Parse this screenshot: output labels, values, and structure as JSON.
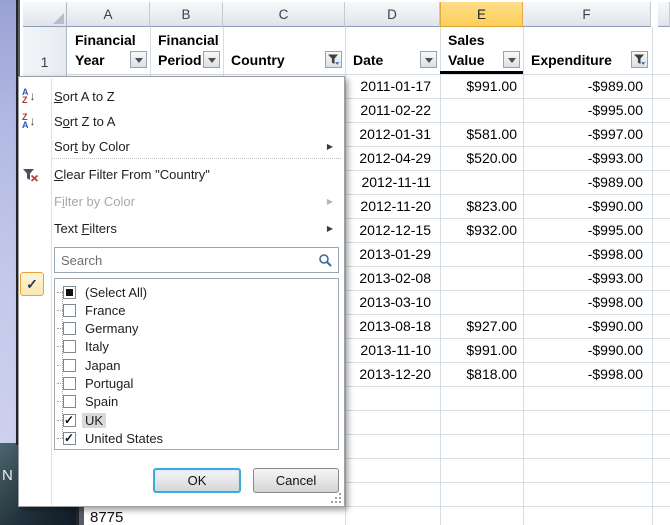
{
  "desktop": {
    "wallpaper_letter": "N"
  },
  "sheet": {
    "column_letters": [
      "A",
      "B",
      "C",
      "D",
      "E",
      "F"
    ],
    "selected_column": "E",
    "row_number": "1",
    "header_cells": [
      {
        "lines": [
          "Financial",
          "Year"
        ],
        "control": "dropdown"
      },
      {
        "lines": [
          "Financial",
          "Period"
        ],
        "control": "dropdown"
      },
      {
        "lines": [
          "Country"
        ],
        "control": "filter"
      },
      {
        "lines": [
          "Date"
        ],
        "control": "dropdown"
      },
      {
        "lines": [
          "Sales",
          "Value"
        ],
        "control": "dropdown"
      },
      {
        "lines": [
          "Expenditure"
        ],
        "control": "filter"
      }
    ],
    "rows": [
      {
        "date": "2011-01-17",
        "sales": "$991.00",
        "expenditure": "-$989.00"
      },
      {
        "date": "2011-02-22",
        "sales": "",
        "expenditure": "-$995.00"
      },
      {
        "date": "2012-01-31",
        "sales": "$581.00",
        "expenditure": "-$997.00"
      },
      {
        "date": "2012-04-29",
        "sales": "$520.00",
        "expenditure": "-$993.00"
      },
      {
        "date": "2012-11-11",
        "sales": "",
        "expenditure": "-$989.00"
      },
      {
        "date": "2012-11-20",
        "sales": "$823.00",
        "expenditure": "-$990.00"
      },
      {
        "date": "2012-12-15",
        "sales": "$932.00",
        "expenditure": "-$995.00"
      },
      {
        "date": "2013-01-29",
        "sales": "",
        "expenditure": "-$998.00"
      },
      {
        "date": "2013-02-08",
        "sales": "",
        "expenditure": "-$993.00"
      },
      {
        "date": "2013-03-10",
        "sales": "",
        "expenditure": "-$998.00"
      },
      {
        "date": "2013-08-18",
        "sales": "$927.00",
        "expenditure": "-$990.00"
      },
      {
        "date": "2013-11-10",
        "sales": "$991.00",
        "expenditure": "-$990.00"
      },
      {
        "date": "2013-12-20",
        "sales": "$818.00",
        "expenditure": "-$998.00"
      }
    ],
    "bottom_partial_cell": "8775"
  },
  "filter_menu": {
    "items": [
      {
        "label": "Sort A to Z",
        "accel": 0,
        "icon": "sort-az-icon"
      },
      {
        "label": "Sort Z to A",
        "accel": 1,
        "icon": "sort-za-icon"
      },
      {
        "label": "Sort by Color",
        "accel": 3,
        "submenu": true
      },
      {
        "label": "Clear Filter From \"Country\"",
        "accel": 0,
        "icon": "clear-filter-icon"
      },
      {
        "label": "Filter by Color",
        "accel": 1,
        "submenu": true,
        "disabled": true
      },
      {
        "label": "Text Filters",
        "accel": 5,
        "submenu": true
      }
    ],
    "search_placeholder": "Search",
    "checklist": [
      {
        "label": "(Select All)",
        "state": "indeterminate"
      },
      {
        "label": "France",
        "state": "unchecked"
      },
      {
        "label": "Germany",
        "state": "unchecked"
      },
      {
        "label": "Italy",
        "state": "unchecked"
      },
      {
        "label": "Japan",
        "state": "unchecked"
      },
      {
        "label": "Portugal",
        "state": "unchecked"
      },
      {
        "label": "Spain",
        "state": "unchecked"
      },
      {
        "label": "UK",
        "state": "checked",
        "focused": true
      },
      {
        "label": "United States",
        "state": "checked"
      }
    ],
    "ok_label": "OK",
    "cancel_label": "Cancel"
  },
  "colors": {
    "selected_column_header": "#fcd469",
    "gridline": "#d6dde6",
    "menu_hover_accent": "#e8a33d",
    "ok_focus_border": "#41a8da"
  }
}
